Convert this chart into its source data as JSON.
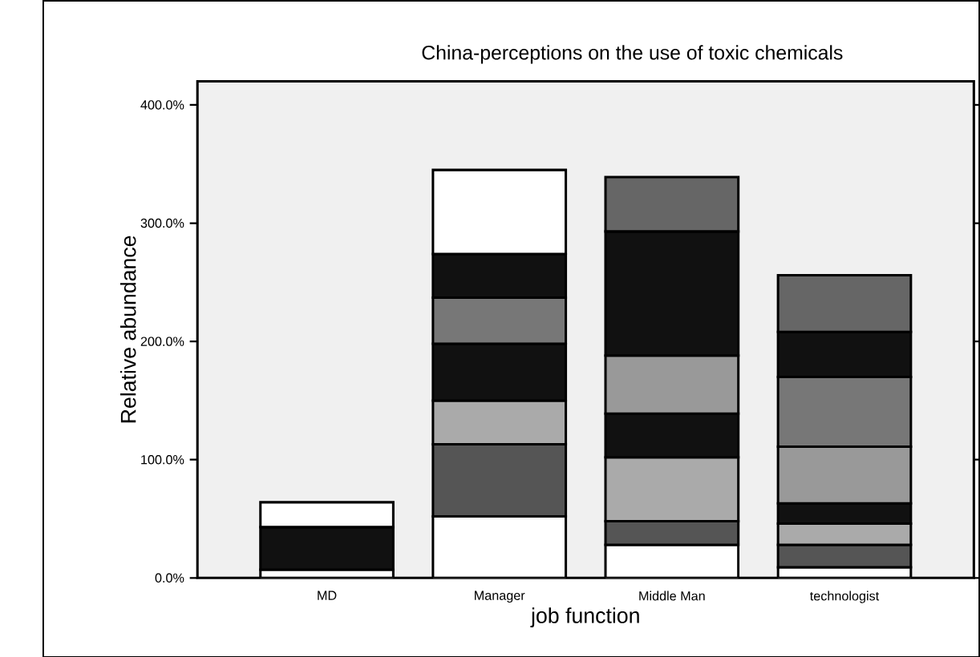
{
  "chart_data": {
    "type": "bar",
    "stacked": true,
    "title": "China-perceptions on the use of toxic chemicals",
    "xlabel": "job function",
    "ylabel": "Relative abundance",
    "categories": [
      "MD",
      "Manager",
      "Middle Man",
      "technologist"
    ],
    "series": [
      {
        "color": "#ffffff",
        "values": [
          7,
          52,
          28,
          9
        ]
      },
      {
        "color": "#555555",
        "values": [
          null,
          61,
          20,
          19
        ]
      },
      {
        "color": "#aaaaaa",
        "values": [
          null,
          37,
          54,
          18
        ]
      },
      {
        "color": "#111111",
        "values": [
          36,
          null,
          37,
          17
        ]
      },
      {
        "color": "#999999",
        "values": [
          null,
          null,
          49,
          48
        ]
      },
      {
        "color": "#111111",
        "values": [
          null,
          48,
          null,
          null
        ]
      },
      {
        "color": "#777777",
        "values": [
          null,
          39,
          null,
          59
        ]
      },
      {
        "color": "#111111",
        "values": [
          null,
          37,
          105,
          38
        ]
      },
      {
        "color": "#ffffff",
        "values": [
          21,
          71,
          null,
          null
        ]
      },
      {
        "color": "#666666",
        "values": [
          null,
          null,
          46,
          48
        ]
      }
    ],
    "ylim": [
      0,
      420
    ],
    "yticks": [
      {
        "value": 0,
        "label": "0.0%"
      },
      {
        "value": 100,
        "label": "100.0%"
      },
      {
        "value": 200,
        "label": "200.0%"
      },
      {
        "value": 300,
        "label": "300.0%"
      },
      {
        "value": 400,
        "label": "400.0%"
      }
    ],
    "grid": false
  }
}
